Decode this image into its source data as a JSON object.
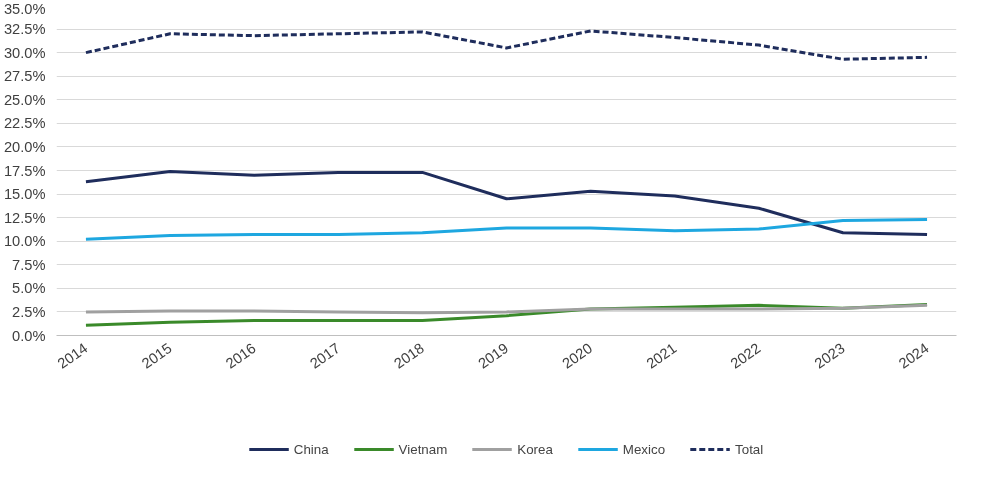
{
  "chart_data": {
    "type": "line",
    "categories": [
      "2014",
      "2015",
      "2016",
      "2017",
      "2018",
      "2019",
      "2020",
      "2021",
      "2022",
      "2023",
      "2024"
    ],
    "series": [
      {
        "name": "China",
        "color": "#1f2d5c",
        "line_style": "solid",
        "values": [
          16.3,
          17.4,
          17.0,
          17.3,
          17.3,
          14.5,
          15.3,
          14.8,
          13.5,
          10.9,
          10.7
        ]
      },
      {
        "name": "Vietnam",
        "color": "#3a8a2a",
        "line_style": "solid",
        "values": [
          1.1,
          1.4,
          1.6,
          1.6,
          1.6,
          2.1,
          2.8,
          3.0,
          3.2,
          2.9,
          3.3
        ]
      },
      {
        "name": "Korea",
        "color": "#a0a0a0",
        "line_style": "solid",
        "values": [
          2.5,
          2.6,
          2.6,
          2.5,
          2.4,
          2.5,
          2.8,
          2.8,
          2.8,
          2.9,
          3.2
        ]
      },
      {
        "name": "Mexico",
        "color": "#1ea7e0",
        "line_style": "solid",
        "values": [
          10.2,
          10.6,
          10.7,
          10.7,
          10.9,
          11.4,
          11.4,
          11.1,
          11.3,
          12.2,
          12.3
        ]
      },
      {
        "name": "Total",
        "color": "#1f2d5c",
        "line_style": "dashed",
        "values": [
          30.0,
          32.0,
          31.8,
          32.0,
          32.2,
          30.5,
          32.3,
          31.6,
          30.8,
          29.3,
          29.5
        ]
      }
    ],
    "ylim": [
      0,
      35
    ],
    "yticks": [
      {
        "value": 0,
        "label": "0.0%"
      },
      {
        "value": 2.5,
        "label": "2.5%"
      },
      {
        "value": 5,
        "label": "5.0%"
      },
      {
        "value": 7.5,
        "label": "7.5%"
      },
      {
        "value": 10,
        "label": "10.0%"
      },
      {
        "value": 12.5,
        "label": "12.5%"
      },
      {
        "value": 15,
        "label": "15.0%"
      },
      {
        "value": 17.5,
        "label": "17.5%"
      },
      {
        "value": 20,
        "label": "20.0%"
      },
      {
        "value": 22.5,
        "label": "22.5%"
      },
      {
        "value": 25,
        "label": "25.0%"
      },
      {
        "value": 27.5,
        "label": "27.5%"
      },
      {
        "value": 30,
        "label": "30.0%"
      },
      {
        "value": 32.5,
        "label": "32.5%"
      },
      {
        "value": 35,
        "label": "35.0%"
      }
    ],
    "grid": "y",
    "legend": "bottom",
    "marker": "none"
  }
}
